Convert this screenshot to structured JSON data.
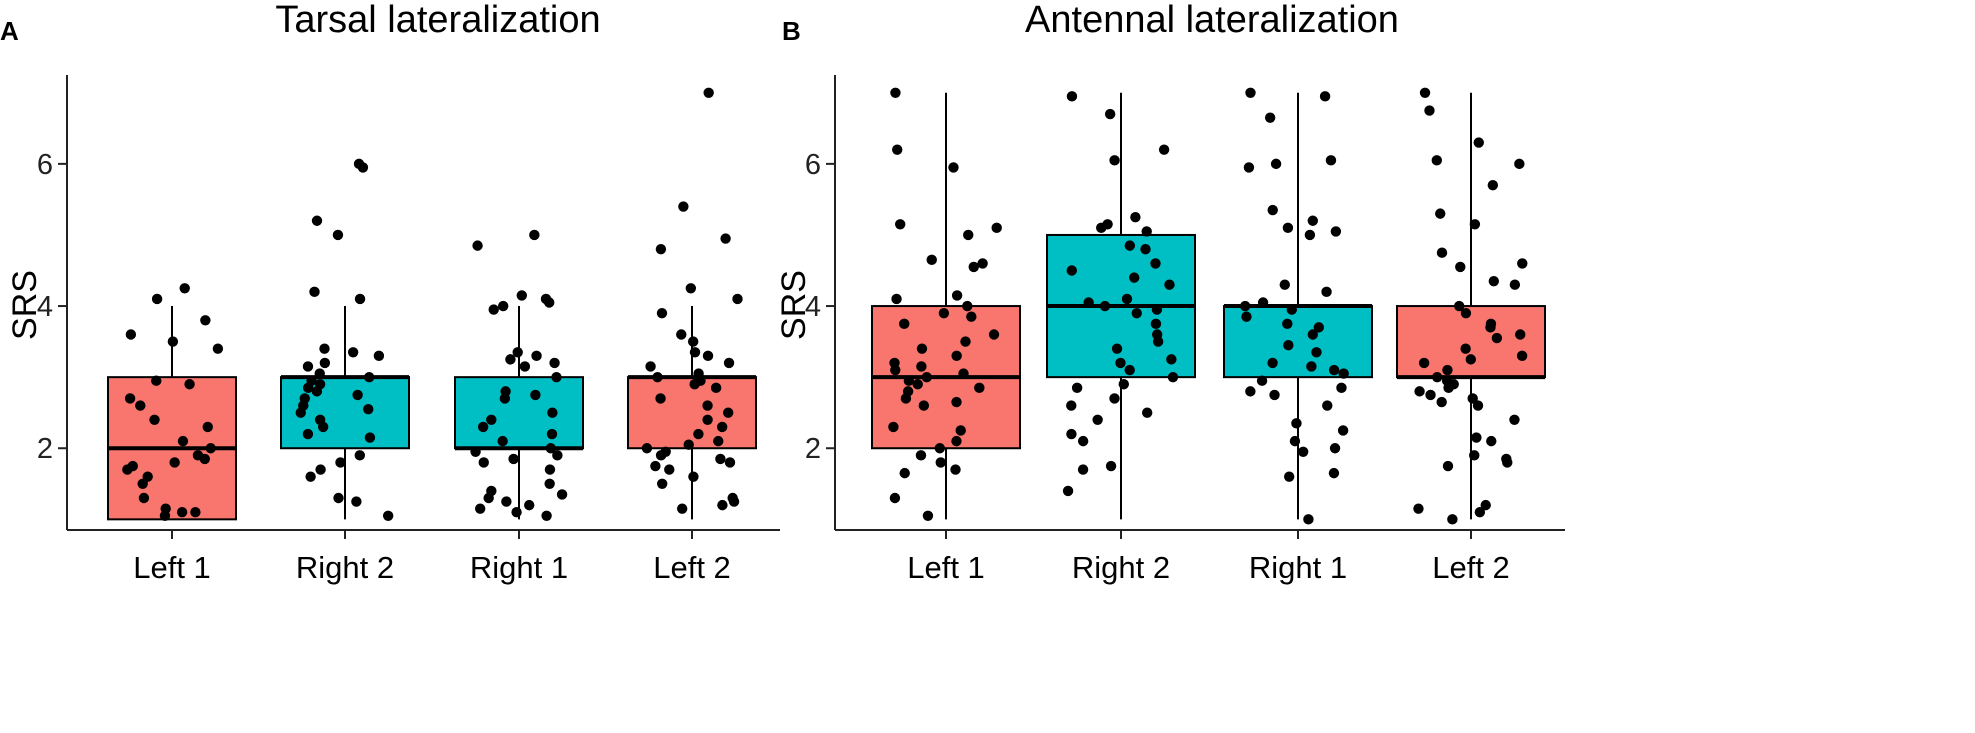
{
  "colors": {
    "red": "#F8766D",
    "teal": "#00BFC4"
  },
  "chart_data": [
    {
      "type": "box",
      "panel": "A",
      "title": "Tarsal lateralization",
      "xlabel": "",
      "ylabel": "SRS",
      "ylim": [
        0.85,
        7.25
      ],
      "yticks": [
        2,
        4,
        6
      ],
      "categories": [
        "Left 1",
        "Right 2",
        "Right 1",
        "Left 2"
      ],
      "box_colors": [
        "red",
        "teal",
        "teal",
        "red"
      ],
      "boxes": [
        {
          "min": 1,
          "q1": 1,
          "median": 2,
          "q3": 3,
          "max": 4
        },
        {
          "min": 1,
          "q1": 2,
          "median": 3,
          "q3": 3,
          "max": 4
        },
        {
          "min": 1,
          "q1": 2,
          "median": 2,
          "q3": 3,
          "max": 4
        },
        {
          "min": 1,
          "q1": 2,
          "median": 3,
          "q3": 3,
          "max": 4
        }
      ],
      "points": [
        [
          4.25,
          4.1,
          3.8,
          3.6,
          3.5,
          3.4,
          2.95,
          2.9,
          2.7,
          2.6,
          2.4,
          2.3,
          2.1,
          2.0,
          1.9,
          1.85,
          1.8,
          1.75,
          1.7,
          1.6,
          1.5,
          1.3,
          1.15,
          1.1,
          1.1,
          1.05
        ],
        [
          6.0,
          5.95,
          5.2,
          5.0,
          4.2,
          4.1,
          3.4,
          3.35,
          3.3,
          3.2,
          3.15,
          3.05,
          3.0,
          2.95,
          2.9,
          2.85,
          2.8,
          2.75,
          2.7,
          2.6,
          2.55,
          2.5,
          2.4,
          2.3,
          2.2,
          2.15,
          1.9,
          1.8,
          1.7,
          1.6,
          1.3,
          1.25,
          1.05
        ],
        [
          5.0,
          4.85,
          4.15,
          4.1,
          4.05,
          4.0,
          3.95,
          3.35,
          3.3,
          3.25,
          3.2,
          3.15,
          3.0,
          2.8,
          2.75,
          2.7,
          2.5,
          2.4,
          2.3,
          2.2,
          2.1,
          2.0,
          1.95,
          1.9,
          1.85,
          1.8,
          1.7,
          1.5,
          1.4,
          1.35,
          1.3,
          1.25,
          1.2,
          1.15,
          1.1,
          1.05
        ],
        [
          7.0,
          5.4,
          4.95,
          4.8,
          4.25,
          4.1,
          3.9,
          3.6,
          3.5,
          3.35,
          3.3,
          3.2,
          3.15,
          3.05,
          3.0,
          2.95,
          2.9,
          2.85,
          2.7,
          2.6,
          2.5,
          2.4,
          2.3,
          2.2,
          2.1,
          2.05,
          2.0,
          1.95,
          1.9,
          1.85,
          1.8,
          1.75,
          1.7,
          1.6,
          1.5,
          1.3,
          1.25,
          1.2,
          1.15
        ]
      ]
    },
    {
      "type": "box",
      "panel": "B",
      "title": "Antennal lateralization",
      "xlabel": "",
      "ylabel": "SRS",
      "ylim": [
        0.85,
        7.25
      ],
      "yticks": [
        2,
        4,
        6
      ],
      "categories": [
        "Left 1",
        "Right 2",
        "Right 1",
        "Left 2"
      ],
      "box_colors": [
        "red",
        "teal",
        "teal",
        "red"
      ],
      "boxes": [
        {
          "min": 1,
          "q1": 2,
          "median": 3,
          "q3": 4,
          "max": 7
        },
        {
          "min": 1,
          "q1": 3,
          "median": 4,
          "q3": 5,
          "max": 7
        },
        {
          "min": 1,
          "q1": 3,
          "median": 4,
          "q3": 4,
          "max": 7
        },
        {
          "min": 1,
          "q1": 3,
          "median": 3,
          "q3": 4,
          "max": 7
        }
      ],
      "points": [
        [
          7.0,
          6.2,
          5.95,
          5.15,
          5.1,
          5.0,
          4.65,
          4.6,
          4.55,
          4.15,
          4.1,
          4.0,
          3.9,
          3.85,
          3.75,
          3.6,
          3.5,
          3.4,
          3.3,
          3.2,
          3.15,
          3.1,
          3.05,
          3.0,
          2.95,
          2.9,
          2.85,
          2.8,
          2.7,
          2.65,
          2.6,
          2.3,
          2.25,
          2.1,
          2.0,
          1.9,
          1.8,
          1.7,
          1.65,
          1.3,
          1.05
        ],
        [
          6.95,
          6.7,
          6.2,
          6.05,
          5.25,
          5.15,
          5.1,
          5.05,
          4.85,
          4.8,
          4.6,
          4.5,
          4.4,
          4.3,
          4.1,
          4.05,
          4.0,
          3.95,
          3.9,
          3.75,
          3.6,
          3.5,
          3.4,
          3.25,
          3.2,
          3.1,
          3.0,
          2.9,
          2.85,
          2.7,
          2.6,
          2.5,
          2.4,
          2.2,
          2.1,
          1.75,
          1.7,
          1.4
        ],
        [
          7.0,
          6.95,
          6.65,
          6.05,
          6.0,
          5.95,
          5.35,
          5.2,
          5.1,
          5.05,
          5.0,
          4.3,
          4.2,
          4.05,
          4.0,
          3.95,
          3.85,
          3.75,
          3.7,
          3.6,
          3.45,
          3.35,
          3.2,
          3.15,
          3.1,
          3.05,
          2.95,
          2.85,
          2.8,
          2.75,
          2.6,
          2.35,
          2.25,
          2.1,
          2.0,
          1.95,
          1.65,
          1.6,
          1.0
        ],
        [
          7.0,
          6.75,
          6.3,
          6.05,
          6.0,
          5.7,
          5.3,
          5.15,
          4.75,
          4.6,
          4.55,
          4.35,
          4.3,
          4.0,
          3.9,
          3.75,
          3.7,
          3.6,
          3.55,
          3.4,
          3.3,
          3.25,
          3.2,
          3.1,
          3.0,
          2.95,
          2.9,
          2.85,
          2.8,
          2.75,
          2.7,
          2.65,
          2.6,
          2.4,
          2.15,
          2.1,
          1.9,
          1.85,
          1.8,
          1.75,
          1.2,
          1.15,
          1.1,
          1.0
        ]
      ]
    }
  ]
}
